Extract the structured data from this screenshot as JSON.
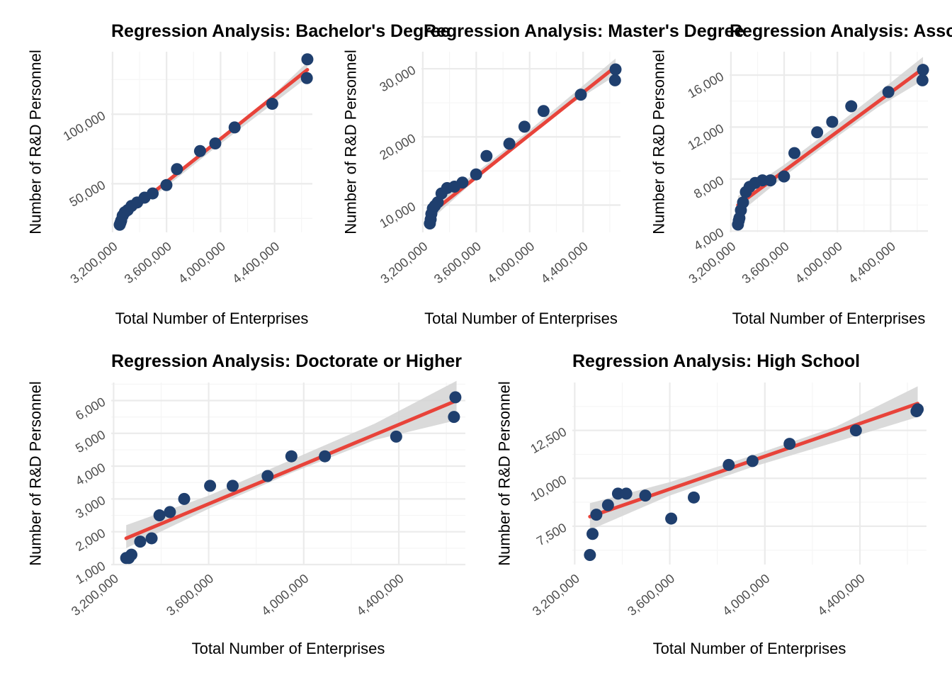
{
  "figure": {
    "background": "#ffffff",
    "colors": {
      "points": "#1f3f6e",
      "fit_line": "#e8433a",
      "confidence_band": "#d3d3d3",
      "grid_major": "#ebebeb",
      "grid_minor": "#f5f5f5"
    }
  },
  "chart_data": [
    {
      "type": "scatter",
      "title": "Regression Analysis: Bachelor's Degree",
      "xlabel": "Total Number of Enterprises",
      "ylabel": "Number of R&D Personnel",
      "xlim": [
        3190000,
        4680000
      ],
      "ylim": [
        15000,
        145000
      ],
      "x_ticks": [
        3200000,
        3600000,
        4000000,
        4400000
      ],
      "x_tick_labels": [
        "3,200,000",
        "3,600,000",
        "4,000,000",
        "4,400,000"
      ],
      "y_ticks": [
        50000,
        100000
      ],
      "y_tick_labels": [
        "50,000",
        "100,000"
      ],
      "x": [
        3253000,
        3259000,
        3264000,
        3275000,
        3291000,
        3312000,
        3340000,
        3382000,
        3437000,
        3497000,
        3599000,
        3677000,
        3848000,
        3961000,
        4104000,
        4383000,
        4639000,
        4643000
      ],
      "y": [
        20500,
        22000,
        23500,
        27000,
        29500,
        31000,
        34000,
        36500,
        40000,
        43000,
        49000,
        60500,
        73500,
        79000,
        90500,
        107500,
        126000,
        139500
      ],
      "fit": {
        "x": [
          3253000,
          4643000
        ],
        "y": [
          24500,
          132000
        ]
      },
      "band": {
        "x": [
          3253000,
          3600000,
          3950000,
          4300000,
          4643000
        ],
        "lower": [
          22000,
          48000,
          75000,
          101000,
          126500
        ],
        "upper": [
          27500,
          52000,
          78000,
          105500,
          137500
        ]
      },
      "grid": true,
      "legend": "none"
    },
    {
      "type": "scatter",
      "title": "Regression Analysis: Master's Degree",
      "xlabel": "Total Number of Enterprises",
      "ylabel": "Number of R&D Personnel",
      "xlim": [
        3190000,
        4680000
      ],
      "ylim": [
        6000,
        32500
      ],
      "x_ticks": [
        3200000,
        3600000,
        4000000,
        4400000
      ],
      "x_tick_labels": [
        "3,200,000",
        "3,600,000",
        "4,000,000",
        "4,400,000"
      ],
      "y_ticks": [
        10000,
        20000,
        30000
      ],
      "y_tick_labels": [
        "10,000",
        "20,000",
        "30,000"
      ],
      "x": [
        3253000,
        3259000,
        3264000,
        3275000,
        3291000,
        3312000,
        3340000,
        3382000,
        3437000,
        3497000,
        3599000,
        3677000,
        3848000,
        3961000,
        4104000,
        4383000,
        4639000,
        4643000
      ],
      "y": [
        7300,
        7900,
        8700,
        9500,
        9900,
        10400,
        11700,
        12500,
        12700,
        13300,
        14500,
        17200,
        19000,
        21500,
        23800,
        26200,
        28300,
        29900
      ],
      "fit": {
        "x": [
          3253000,
          4643000
        ],
        "y": [
          8700,
          30300
        ]
      },
      "band": {
        "x": [
          3253000,
          3600000,
          3950000,
          4300000,
          4643000
        ],
        "lower": [
          7700,
          13800,
          19300,
          24700,
          29000
        ],
        "upper": [
          9700,
          14800,
          20200,
          25900,
          31500
        ]
      },
      "grid": true,
      "legend": "none"
    },
    {
      "type": "scatter",
      "title": "Regression Analysis: Associate Degree",
      "xlabel": "Total Number of Enterprises",
      "ylabel": "Number of R&D Personnel",
      "xlim": [
        3190000,
        4680000
      ],
      "ylim": [
        3900,
        17800
      ],
      "x_ticks": [
        3200000,
        3600000,
        4000000,
        4400000
      ],
      "x_tick_labels": [
        "3,200,000",
        "3,600,000",
        "4,000,000",
        "4,400,000"
      ],
      "y_ticks": [
        4000,
        8000,
        12000,
        16000
      ],
      "y_tick_labels": [
        "4,000",
        "8,000",
        "12,000",
        "16,000"
      ],
      "x": [
        3253000,
        3259000,
        3264000,
        3275000,
        3291000,
        3312000,
        3340000,
        3382000,
        3437000,
        3497000,
        3599000,
        3677000,
        3848000,
        3961000,
        4104000,
        4383000,
        4639000,
        4643000
      ],
      "y": [
        4500,
        4800,
        5000,
        5600,
        6200,
        7000,
        7400,
        7700,
        7900,
        7900,
        8200,
        10000,
        11600,
        12400,
        13600,
        14700,
        15600,
        16400
      ],
      "fit": {
        "x": [
          3253000,
          4643000
        ],
        "y": [
          6000,
          16500
        ]
      },
      "band": {
        "x": [
          3253000,
          3600000,
          3950000,
          4300000,
          4643000
        ],
        "lower": [
          5300,
          8200,
          10900,
          13500,
          15600
        ],
        "upper": [
          6700,
          9100,
          11800,
          14600,
          17400
        ]
      },
      "grid": true,
      "legend": "none"
    },
    {
      "type": "scatter",
      "title": "Regression Analysis: Doctorate or Higher",
      "xlabel": "Total Number of Enterprises",
      "ylabel": "Number of R&D Personnel",
      "xlim": [
        3190000,
        4680000
      ],
      "ylim": [
        1000,
        6550
      ],
      "x_ticks": [
        3200000,
        3600000,
        4000000,
        4400000
      ],
      "x_tick_labels": [
        "3,200,000",
        "3,600,000",
        "4,000,000",
        "4,400,000"
      ],
      "y_ticks": [
        1000,
        2000,
        3000,
        4000,
        5000,
        6000
      ],
      "y_tick_labels": [
        "1,000",
        "2,000",
        "3,000",
        "4,000",
        "5,000",
        "6,000"
      ],
      "x": [
        3253000,
        3264000,
        3275000,
        3312000,
        3360000,
        3393000,
        3437000,
        3497000,
        3606000,
        3701000,
        3848000,
        3948000,
        4089000,
        4389000,
        4632000,
        4638000
      ],
      "y": [
        1200,
        1200,
        1300,
        1700,
        1800,
        2500,
        2600,
        3000,
        3400,
        3400,
        3700,
        4300,
        4300,
        4900,
        5500,
        6100
      ],
      "fit": {
        "x": [
          3253000,
          4643000
        ],
        "y": [
          1800,
          6000
        ]
      },
      "band": {
        "x": [
          3253000,
          3600000,
          3950000,
          4300000,
          4643000
        ],
        "lower": [
          1500,
          2700,
          3800,
          4800,
          5400
        ],
        "upper": [
          2200,
          3100,
          4200,
          5300,
          6600
        ]
      },
      "grid": true,
      "legend": "none"
    },
    {
      "type": "scatter",
      "title": "Regression Analysis: High School",
      "xlabel": "Total Number of Enterprises",
      "ylabel": "Number of R&D Personnel",
      "xlim": [
        3190000,
        4680000
      ],
      "ylim": [
        5500,
        15000
      ],
      "x_ticks": [
        3200000,
        3600000,
        4000000,
        4400000
      ],
      "x_tick_labels": [
        "3,200,000",
        "3,600,000",
        "4,000,000",
        "4,400,000"
      ],
      "y_ticks": [
        7500,
        10000,
        12500
      ],
      "y_tick_labels": [
        "7,500",
        "10,000",
        "12,500"
      ],
      "x": [
        3264000,
        3275000,
        3291000,
        3340000,
        3382000,
        3417000,
        3497000,
        3606000,
        3701000,
        3848000,
        3948000,
        4104000,
        4383000,
        4638000,
        4643000
      ],
      "y": [
        6000,
        7100,
        8100,
        8600,
        9200,
        9200,
        9100,
        7900,
        9000,
        10700,
        10900,
        11800,
        12500,
        13500,
        13600
      ],
      "fit": {
        "x": [
          3264000,
          4643000
        ],
        "y": [
          8000,
          13900
        ]
      },
      "band": {
        "x": [
          3264000,
          3600000,
          3950000,
          4300000,
          4643000
        ],
        "lower": [
          7300,
          9100,
          10600,
          11900,
          13200
        ],
        "upper": [
          8700,
          9800,
          11200,
          12700,
          14800
        ]
      },
      "grid": true,
      "legend": "none"
    }
  ]
}
